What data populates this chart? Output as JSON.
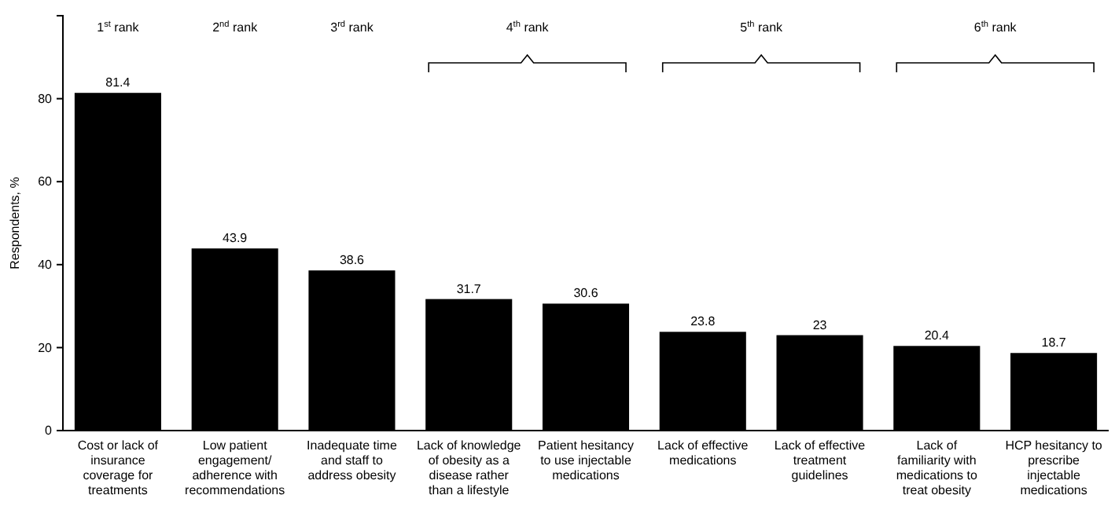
{
  "chart_data": {
    "type": "bar",
    "ylabel": "Respondents, %",
    "categories": [
      "Cost or lack of insurance coverage for treatments",
      "Low patient engagement/ adherence with recommendations",
      "Inadequate time and staff to address obesity",
      "Lack of knowledge of obesity as a disease rather than a lifestyle",
      "Patient hesitancy to use injectable medications",
      "Lack of effective medications",
      "Lack of effective treatment guidelines",
      "Lack of familiarity with medications to treat obesity",
      "HCP hesitancy to prescribe injectable medications"
    ],
    "values": [
      81.4,
      43.9,
      38.6,
      31.7,
      30.6,
      23.8,
      23,
      20.4,
      18.7
    ],
    "color": "#000000",
    "data_labels": true,
    "ylim": [
      0,
      100
    ],
    "yticks": [
      0,
      20,
      40,
      60,
      80
    ],
    "annotations": [
      "1$^{st}$ rank",
      "2$^{nd}$ rank",
      "3$^{rd}$ rank",
      "4$^{th}$ rank",
      "5$^{th}$ rank",
      "6$^{th}$ rank"
    ]
  }
}
